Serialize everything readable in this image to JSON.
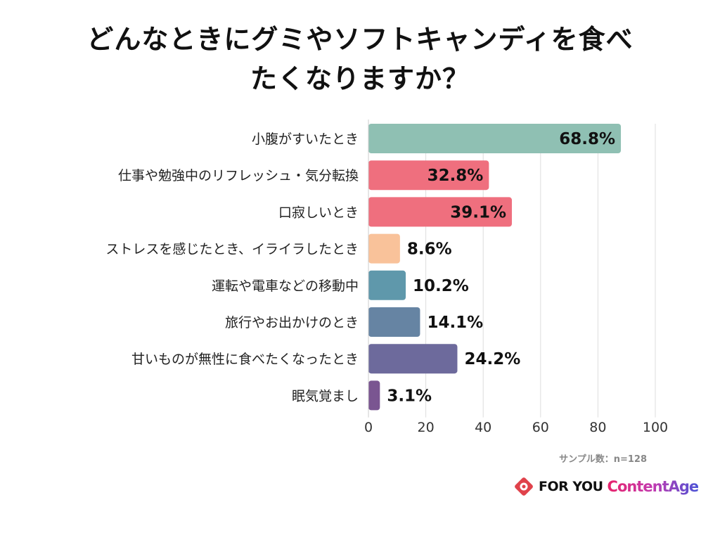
{
  "title_lines": [
    "どんなときにグミやソフトキャンディを食べ",
    "たくなりますか？"
  ],
  "sample_text": "サンプル数：n=128",
  "logos": {
    "foryou": "FOR YOU",
    "contentage": "ContentAge"
  },
  "colors": {
    "teal": "#8fc0b3",
    "pink": "#ef6f7e",
    "peach": "#f9c29a",
    "blue": "#5f98ab",
    "slate": "#6684a3",
    "purple": "#6d6a9c",
    "violet": "#7a5591",
    "logo_red": "#e0424b"
  },
  "chart_data": {
    "type": "bar",
    "orientation": "horizontal",
    "categories": [
      "小腹がすいたとき",
      "仕事や勉強中のリフレッシュ・気分転換",
      "口寂しいとき",
      "ストレスを感じたとき、イライラしたとき",
      "運転や電車などの移動中",
      "旅行やお出かけのとき",
      "甘いものが無性に食べたくなったとき",
      "眠気覚まし"
    ],
    "values": [
      88,
      42,
      50,
      11,
      13,
      18,
      31,
      4
    ],
    "value_labels": [
      "68.8%",
      "32.8%",
      "39.1%",
      "8.6%",
      "10.2%",
      "14.1%",
      "24.2%",
      "3.1%"
    ],
    "bar_colors": [
      "#8fc0b3",
      "#ef6f7e",
      "#ef6f7e",
      "#f9c29a",
      "#5f98ab",
      "#6684a3",
      "#6d6a9c",
      "#7a5591"
    ],
    "label_inside": [
      true,
      true,
      true,
      false,
      false,
      false,
      false,
      false
    ],
    "xlim": [
      0,
      100
    ],
    "xticks": [
      0,
      20,
      40,
      60,
      80,
      100
    ],
    "grid": true,
    "xlabel": "",
    "ylabel": ""
  }
}
